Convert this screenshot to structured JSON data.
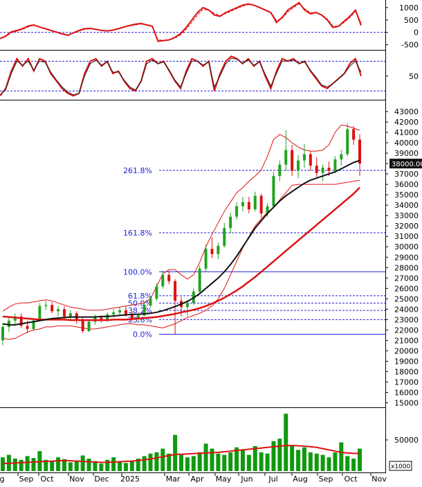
{
  "chart_data": [
    {
      "type": "line",
      "panel": "indicator-1",
      "yticks": [
        "1000",
        "500",
        "0",
        "-500"
      ],
      "tick_values": [
        1000,
        500,
        0,
        -500
      ],
      "ylim": [
        -650,
        1250
      ],
      "reference_lines": [
        0
      ],
      "series": [
        {
          "color": "#dd1111",
          "values": [
            -250,
            -150,
            20,
            80,
            150,
            260,
            300,
            220,
            150,
            80,
            10,
            -60,
            -120,
            -20,
            80,
            150,
            160,
            120,
            80,
            60,
            90,
            150,
            220,
            280,
            330,
            360,
            300,
            250,
            -360,
            -330,
            -300,
            -200,
            -50,
            200,
            500,
            800,
            1000,
            900,
            700,
            650,
            800,
            900,
            1000,
            1100,
            1150,
            1100,
            1000,
            900,
            800,
            400,
            600,
            900,
            1050,
            1200,
            900,
            750,
            800,
            700,
            500,
            200,
            250,
            450,
            650,
            900,
            280
          ]
        },
        {
          "color": "#dd1111",
          "dash": true,
          "values": [
            -250,
            -170,
            -20,
            50,
            120,
            220,
            280,
            230,
            170,
            100,
            30,
            -40,
            -100,
            -40,
            50,
            120,
            150,
            130,
            90,
            70,
            80,
            130,
            200,
            260,
            300,
            340,
            310,
            260,
            -300,
            -330,
            -310,
            -230,
            -100,
            120,
            400,
            700,
            920,
            900,
            760,
            680,
            760,
            860,
            960,
            1060,
            1120,
            1100,
            1020,
            920,
            820,
            480,
            560,
            820,
            1000,
            1150,
            950,
            800,
            790,
            720,
            540,
            260,
            240,
            400,
            600,
            840,
            400
          ]
        }
      ]
    },
    {
      "type": "line",
      "panel": "indicator-2",
      "yticks": [
        "50"
      ],
      "tick_values": [
        50
      ],
      "ylim": [
        5,
        100
      ],
      "reference_lines": [
        80,
        20
      ],
      "series": [
        {
          "color": "#dd1111",
          "values": [
            10,
            25,
            60,
            85,
            70,
            85,
            60,
            85,
            80,
            55,
            40,
            25,
            15,
            10,
            15,
            55,
            80,
            85,
            70,
            80,
            55,
            60,
            40,
            25,
            20,
            40,
            80,
            85,
            75,
            80,
            60,
            40,
            25,
            60,
            85,
            80,
            70,
            80,
            20,
            55,
            80,
            90,
            85,
            75,
            85,
            70,
            80,
            50,
            25,
            60,
            85,
            80,
            85,
            75,
            80,
            60,
            45,
            30,
            25,
            35,
            45,
            55,
            75,
            85,
            50
          ]
        },
        {
          "color": "#222222",
          "values": [
            12,
            22,
            55,
            80,
            72,
            80,
            62,
            80,
            78,
            58,
            42,
            28,
            18,
            12,
            15,
            50,
            75,
            82,
            72,
            78,
            58,
            58,
            42,
            28,
            22,
            38,
            75,
            82,
            75,
            78,
            62,
            42,
            28,
            55,
            80,
            80,
            72,
            78,
            28,
            50,
            75,
            86,
            84,
            76,
            82,
            72,
            78,
            54,
            30,
            55,
            80,
            80,
            82,
            76,
            78,
            62,
            48,
            32,
            28,
            34,
            44,
            54,
            70,
            80,
            58
          ]
        }
      ]
    },
    {
      "type": "candlestick",
      "panel": "price",
      "yticks": [
        "43000",
        "42000",
        "41000",
        "40000",
        "39000",
        "38000",
        "37000",
        "36000",
        "35000",
        "34000",
        "33000",
        "32000",
        "31000",
        "30000",
        "29000",
        "28000",
        "27000",
        "26000",
        "25000",
        "24000",
        "23000",
        "22000",
        "21000",
        "20000",
        "19000",
        "18000",
        "17000",
        "16000",
        "15000"
      ],
      "tick_values": [
        43000,
        42000,
        41000,
        40000,
        39000,
        38000,
        37000,
        36000,
        35000,
        34000,
        33000,
        32000,
        31000,
        30000,
        29000,
        28000,
        27000,
        26000,
        25000,
        24000,
        23000,
        22000,
        21000,
        20000,
        19000,
        18000,
        17000,
        16000,
        15000
      ],
      "ylim": [
        14700,
        44000
      ],
      "last_price": "38000.00",
      "last_price_value": 38000,
      "fibonacci": [
        {
          "label": "261.8%",
          "value": 37350
        },
        {
          "label": "161.8%",
          "value": 31350
        },
        {
          "label": "100.0%",
          "value": 27600
        },
        {
          "label": "61.8%",
          "value": 25300
        },
        {
          "label": "50.0%",
          "value": 24580
        },
        {
          "label": "38.2%",
          "value": 23880
        },
        {
          "label": "23.6%",
          "value": 23000
        },
        {
          "label": "0.0%",
          "value": 21590
        }
      ],
      "candles": [
        {
          "o": 21000,
          "h": 22600,
          "l": 20500,
          "c": 22300
        },
        {
          "o": 22300,
          "h": 23200,
          "l": 21800,
          "c": 22900
        },
        {
          "o": 22900,
          "h": 23600,
          "l": 22400,
          "c": 23300
        },
        {
          "o": 23300,
          "h": 23600,
          "l": 22200,
          "c": 22400
        },
        {
          "o": 22400,
          "h": 22900,
          "l": 21700,
          "c": 22100
        },
        {
          "o": 22100,
          "h": 23100,
          "l": 21900,
          "c": 22900
        },
        {
          "o": 22900,
          "h": 24600,
          "l": 22800,
          "c": 24300
        },
        {
          "o": 24300,
          "h": 24800,
          "l": 23900,
          "c": 24400
        },
        {
          "o": 24400,
          "h": 24700,
          "l": 23600,
          "c": 23800
        },
        {
          "o": 23800,
          "h": 24300,
          "l": 23300,
          "c": 24000
        },
        {
          "o": 24000,
          "h": 24300,
          "l": 23100,
          "c": 23300
        },
        {
          "o": 23300,
          "h": 23900,
          "l": 22900,
          "c": 23600
        },
        {
          "o": 23600,
          "h": 23800,
          "l": 22600,
          "c": 22900
        },
        {
          "o": 22900,
          "h": 23200,
          "l": 21700,
          "c": 21900
        },
        {
          "o": 21900,
          "h": 23000,
          "l": 21800,
          "c": 22800
        },
        {
          "o": 22800,
          "h": 23500,
          "l": 22500,
          "c": 23200
        },
        {
          "o": 23200,
          "h": 23400,
          "l": 22700,
          "c": 22900
        },
        {
          "o": 22900,
          "h": 23700,
          "l": 22800,
          "c": 23500
        },
        {
          "o": 23500,
          "h": 24000,
          "l": 23200,
          "c": 23700
        },
        {
          "o": 23700,
          "h": 24200,
          "l": 23400,
          "c": 23900
        },
        {
          "o": 23900,
          "h": 24300,
          "l": 23300,
          "c": 23500
        },
        {
          "o": 23500,
          "h": 23800,
          "l": 22800,
          "c": 23100
        },
        {
          "o": 23100,
          "h": 23600,
          "l": 22700,
          "c": 23400
        },
        {
          "o": 23400,
          "h": 24600,
          "l": 23300,
          "c": 24400
        },
        {
          "o": 24400,
          "h": 25200,
          "l": 24200,
          "c": 25000
        },
        {
          "o": 25000,
          "h": 26500,
          "l": 24800,
          "c": 26200
        },
        {
          "o": 26200,
          "h": 27700,
          "l": 26000,
          "c": 27300
        },
        {
          "o": 27300,
          "h": 27700,
          "l": 26400,
          "c": 26700
        },
        {
          "o": 26700,
          "h": 26900,
          "l": 21600,
          "c": 24800
        },
        {
          "o": 24800,
          "h": 25200,
          "l": 23300,
          "c": 24200
        },
        {
          "o": 24200,
          "h": 24900,
          "l": 23300,
          "c": 24600
        },
        {
          "o": 24600,
          "h": 26000,
          "l": 24400,
          "c": 25700
        },
        {
          "o": 25700,
          "h": 28200,
          "l": 25500,
          "c": 27900
        },
        {
          "o": 27900,
          "h": 30200,
          "l": 27600,
          "c": 29800
        },
        {
          "o": 29800,
          "h": 30900,
          "l": 28900,
          "c": 29300
        },
        {
          "o": 29300,
          "h": 30400,
          "l": 28800,
          "c": 30100
        },
        {
          "o": 30100,
          "h": 32300,
          "l": 29900,
          "c": 31800
        },
        {
          "o": 31800,
          "h": 33300,
          "l": 31300,
          "c": 32900
        },
        {
          "o": 32900,
          "h": 34300,
          "l": 32600,
          "c": 33900
        },
        {
          "o": 33900,
          "h": 34800,
          "l": 33400,
          "c": 34300
        },
        {
          "o": 34300,
          "h": 34800,
          "l": 33200,
          "c": 33600
        },
        {
          "o": 33600,
          "h": 35300,
          "l": 33400,
          "c": 34900
        },
        {
          "o": 34900,
          "h": 35100,
          "l": 32800,
          "c": 33200
        },
        {
          "o": 33200,
          "h": 34200,
          "l": 32900,
          "c": 33900
        },
        {
          "o": 33900,
          "h": 37200,
          "l": 33700,
          "c": 36800
        },
        {
          "o": 36800,
          "h": 38300,
          "l": 36300,
          "c": 37900
        },
        {
          "o": 37900,
          "h": 41200,
          "l": 37300,
          "c": 39300
        },
        {
          "o": 39300,
          "h": 39800,
          "l": 36800,
          "c": 37300
        },
        {
          "o": 37300,
          "h": 38800,
          "l": 36600,
          "c": 38300
        },
        {
          "o": 38300,
          "h": 39900,
          "l": 37600,
          "c": 38900
        },
        {
          "o": 38900,
          "h": 39200,
          "l": 37300,
          "c": 37800
        },
        {
          "o": 37800,
          "h": 38600,
          "l": 36700,
          "c": 37100
        },
        {
          "o": 37100,
          "h": 37900,
          "l": 36300,
          "c": 37600
        },
        {
          "o": 37600,
          "h": 38200,
          "l": 36800,
          "c": 37300
        },
        {
          "o": 37300,
          "h": 38700,
          "l": 37100,
          "c": 38400
        },
        {
          "o": 38400,
          "h": 39300,
          "l": 37800,
          "c": 38900
        },
        {
          "o": 38900,
          "h": 41900,
          "l": 38700,
          "c": 41300
        },
        {
          "o": 41300,
          "h": 41600,
          "l": 39800,
          "c": 40300
        },
        {
          "o": 40300,
          "h": 40800,
          "l": 36800,
          "c": 38000
        }
      ],
      "ma_black": [
        22600,
        22500,
        22500,
        22600,
        22700,
        22800,
        22900,
        23000,
        23100,
        23150,
        23200,
        23250,
        23250,
        23250,
        23250,
        23250,
        23300,
        23300,
        23350,
        23400,
        23450,
        23500,
        23500,
        23550,
        23600,
        23700,
        23850,
        24050,
        24250,
        24500,
        24750,
        25100,
        25500,
        26000,
        26500,
        27000,
        27600,
        28300,
        29100,
        30000,
        30900,
        31800,
        32500,
        33200,
        33800,
        34400,
        34900,
        35300,
        35700,
        36100,
        36400,
        36600,
        36800,
        37000,
        37200,
        37500,
        37800,
        38100,
        38300
      ],
      "ma_red": [
        23300,
        23250,
        23200,
        23150,
        23100,
        23050,
        23000,
        23000,
        23000,
        23000,
        23000,
        22950,
        22950,
        22950,
        22950,
        22950,
        22950,
        22950,
        23000,
        23000,
        23000,
        23050,
        23100,
        23150,
        23200,
        23250,
        23350,
        23450,
        23550,
        23700,
        23800,
        23950,
        24100,
        24300,
        24550,
        24800,
        25100,
        25450,
        25800,
        26200,
        26650,
        27100,
        27600,
        28100,
        28600,
        29100,
        29600,
        30100,
        30600,
        31100,
        31600,
        32100,
        32600,
        33100,
        33600,
        34100,
        34600,
        35100,
        35700
      ],
      "band_upper": [
        23800,
        24200,
        24500,
        24600,
        24600,
        24700,
        24800,
        24900,
        24800,
        24600,
        24400,
        24200,
        24100,
        24000,
        23900,
        23900,
        23900,
        24000,
        24100,
        24200,
        24300,
        24400,
        24500,
        24600,
        25000,
        26200,
        27400,
        27800,
        27800,
        27300,
        26900,
        27300,
        28500,
        30000,
        31200,
        32300,
        33400,
        34300,
        35200,
        35700,
        36300,
        36800,
        37400,
        38700,
        40300,
        40800,
        40500,
        40000,
        39600,
        39300,
        39200,
        39200,
        39300,
        39800,
        41000,
        41700,
        41600,
        41400,
        41200
      ],
      "band_lower": [
        21200,
        21100,
        21200,
        21500,
        21800,
        22000,
        22100,
        22300,
        22300,
        22400,
        22400,
        22400,
        22300,
        22200,
        22100,
        22100,
        22200,
        22300,
        22400,
        22500,
        22600,
        22600,
        22500,
        22500,
        22400,
        22300,
        22200,
        22400,
        22600,
        22900,
        23200,
        23400,
        23600,
        23900,
        24300,
        25000,
        26000,
        27300,
        28600,
        29900,
        31000,
        32000,
        32700,
        33300,
        33800,
        34500,
        35200,
        35900,
        36000,
        36000,
        36000,
        36000,
        36000,
        36000,
        36000,
        36100,
        36200,
        36300,
        36400
      ]
    },
    {
      "type": "bar",
      "panel": "volume",
      "yticks": [
        "50000"
      ],
      "tick_values": [
        50000
      ],
      "ylim": [
        0,
        100000
      ],
      "unit_label": "x1000",
      "values": [
        22000,
        26000,
        20000,
        18000,
        24000,
        21000,
        32000,
        18000,
        15000,
        22000,
        19000,
        14000,
        17000,
        25000,
        20000,
        16000,
        12000,
        18000,
        22000,
        15000,
        13000,
        17000,
        20000,
        24000,
        28000,
        30000,
        36000,
        28000,
        58000,
        26000,
        22000,
        24000,
        30000,
        44000,
        36000,
        28000,
        26000,
        30000,
        38000,
        34000,
        26000,
        40000,
        30000,
        28000,
        48000,
        52000,
        92000,
        40000,
        34000,
        38000,
        30000,
        28000,
        26000,
        22000,
        30000,
        46000,
        24000,
        20000,
        36000
      ],
      "ma_values": [
        12000,
        12500,
        13000,
        13500,
        14000,
        14500,
        15000,
        15500,
        16000,
        16500,
        17000,
        16500,
        16000,
        15500,
        15000,
        14500,
        14000,
        14000,
        14500,
        15000,
        15500,
        16000,
        17000,
        18000,
        19500,
        21000,
        23000,
        25000,
        26500,
        27000,
        27500,
        28000,
        28500,
        29000,
        29500,
        30000,
        31000,
        32000,
        33000,
        34000,
        35000,
        36000,
        37000,
        38000,
        39000,
        40000,
        41000,
        41000,
        40500,
        40000,
        39000,
        38000,
        36000,
        34000,
        32000,
        30000,
        29000,
        28500,
        28000
      ]
    }
  ],
  "x_axis": {
    "labels": [
      "g",
      "Sep",
      "Oct",
      "Nov",
      "Dec",
      "2025",
      "Mar",
      "Apr",
      "May",
      "Jun",
      "Jul",
      "Aug",
      "Sep",
      "Oct",
      "Nov"
    ]
  }
}
